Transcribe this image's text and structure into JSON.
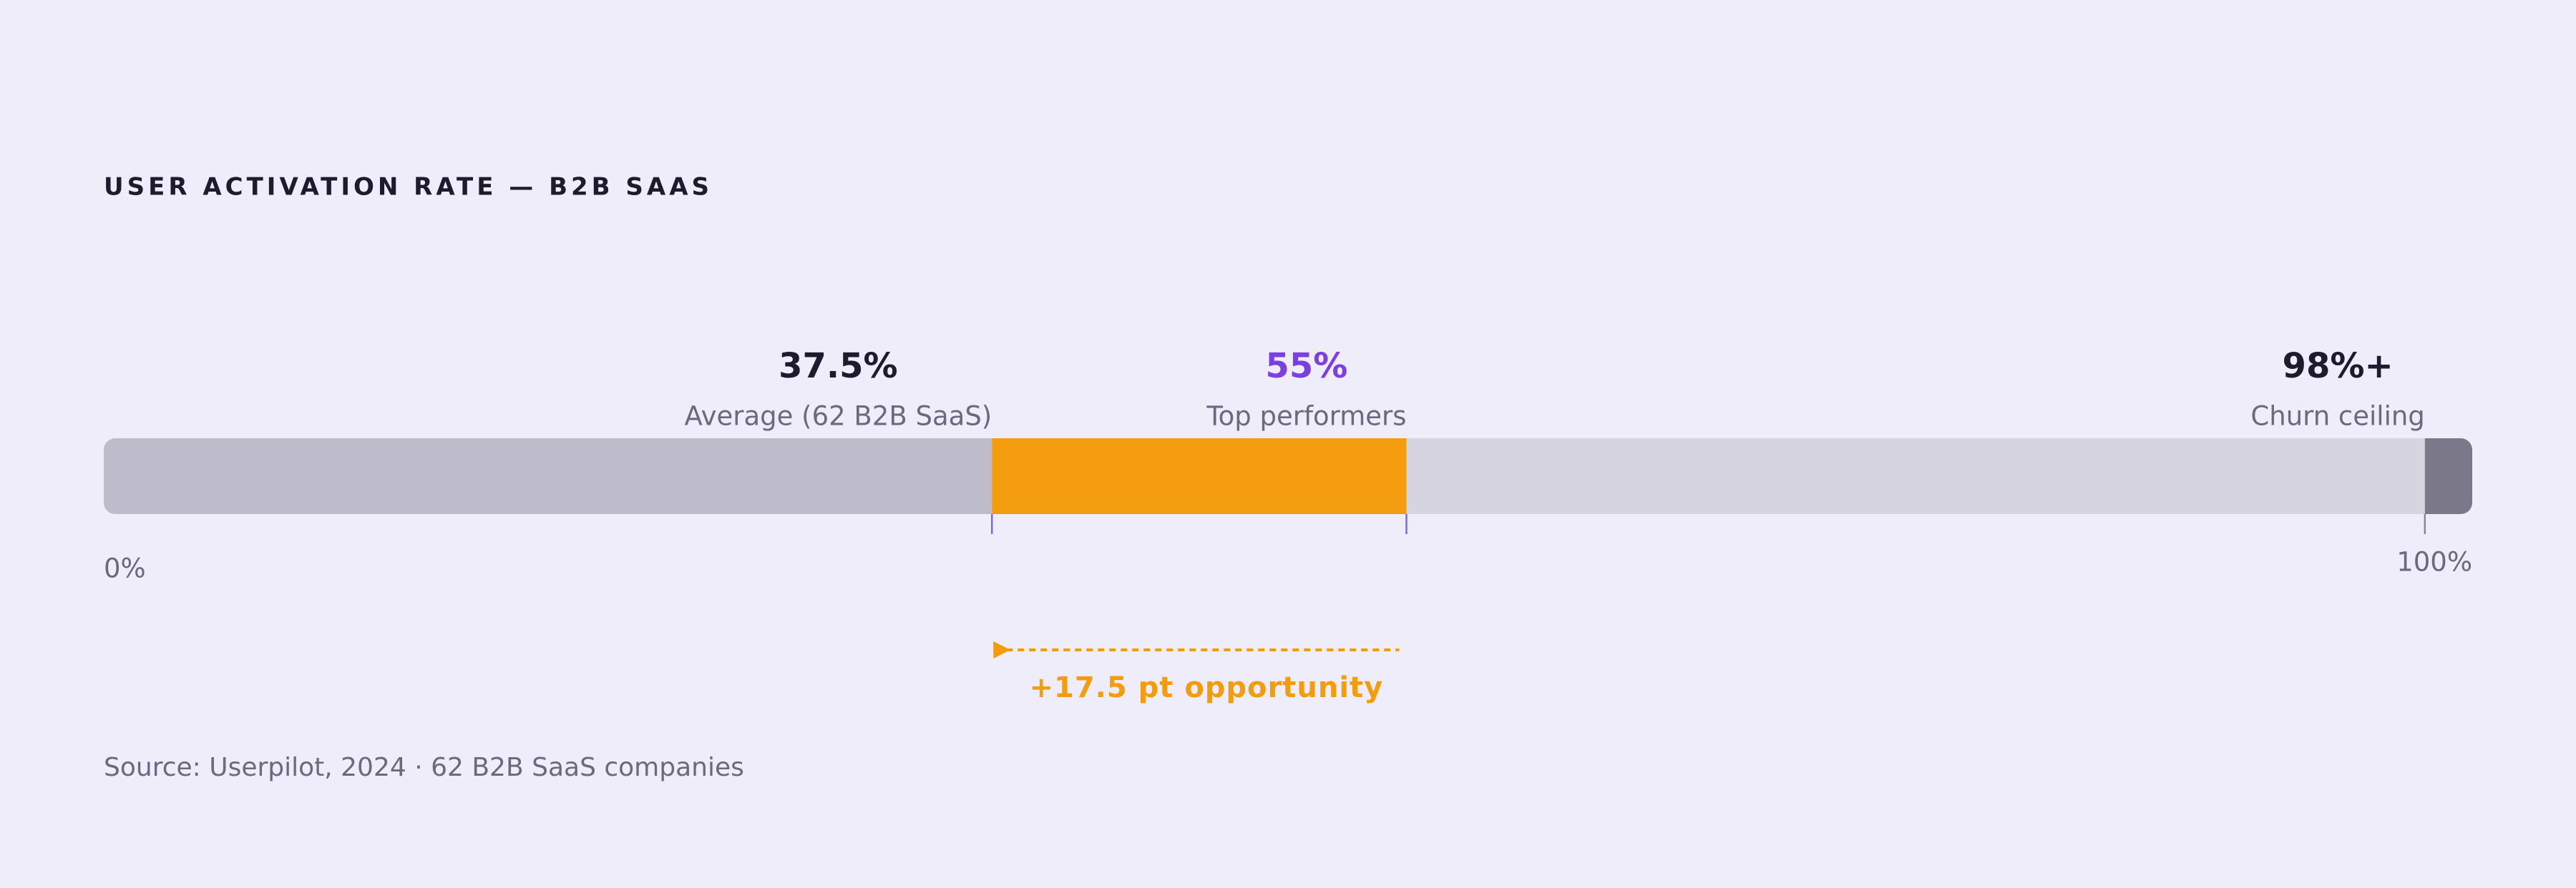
{
  "chart_data": {
    "type": "range-bar",
    "title": "USER ACTIVATION RATE — B2B SAAS",
    "xlim": [
      0,
      100
    ],
    "xticks": [
      {
        "value": 0,
        "label": "0%"
      },
      {
        "value": 100,
        "label": "100%"
      }
    ],
    "markers": [
      {
        "value": 37.5,
        "label": "37.5%",
        "name": "Average (62 B2B SaaS)",
        "color": "#1e1b2e",
        "tick_color": "#7b6fd0"
      },
      {
        "value": 55,
        "label": "55%",
        "name": "Top performers",
        "color": "#7b3fe4",
        "tick_color": "#7b6fd0"
      },
      {
        "value": 98,
        "label": "98%+",
        "name": "Churn ceiling",
        "color": "#1e1b2e",
        "tick_color": "#8a879a"
      }
    ],
    "segment_colors": [
      "#bebcca",
      "#f39c0e",
      "#d6d4e0",
      "#7b7889"
    ],
    "annotation": "+17.5 pt opportunity",
    "annotation_color": "#f39c0e",
    "source": "Source: Userpilot, 2024 · 62 B2B SaaS companies"
  }
}
